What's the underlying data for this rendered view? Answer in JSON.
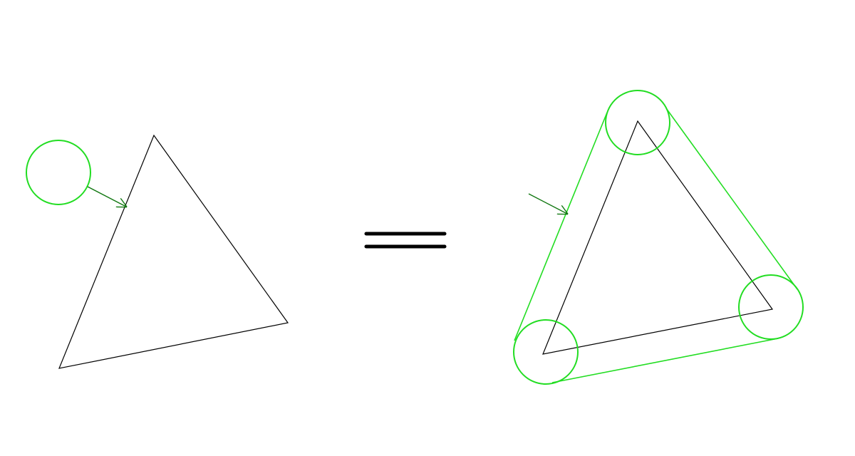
{
  "colors": {
    "background": "#ffffff",
    "polygon_stroke": "#000000",
    "circle_stroke": "#22dd22",
    "arrow_stroke": "#117711",
    "equals_stroke": "#000000"
  },
  "elements": {
    "left_triangle": "triangle",
    "moving_circle": "circle",
    "motion_arrow": "arrow",
    "equals_sign": "equals",
    "right_triangle": "triangle",
    "vertex_circles": [
      "circle",
      "circle",
      "circle"
    ],
    "swept_outline": "outline",
    "outline_arrow": "arrow"
  }
}
